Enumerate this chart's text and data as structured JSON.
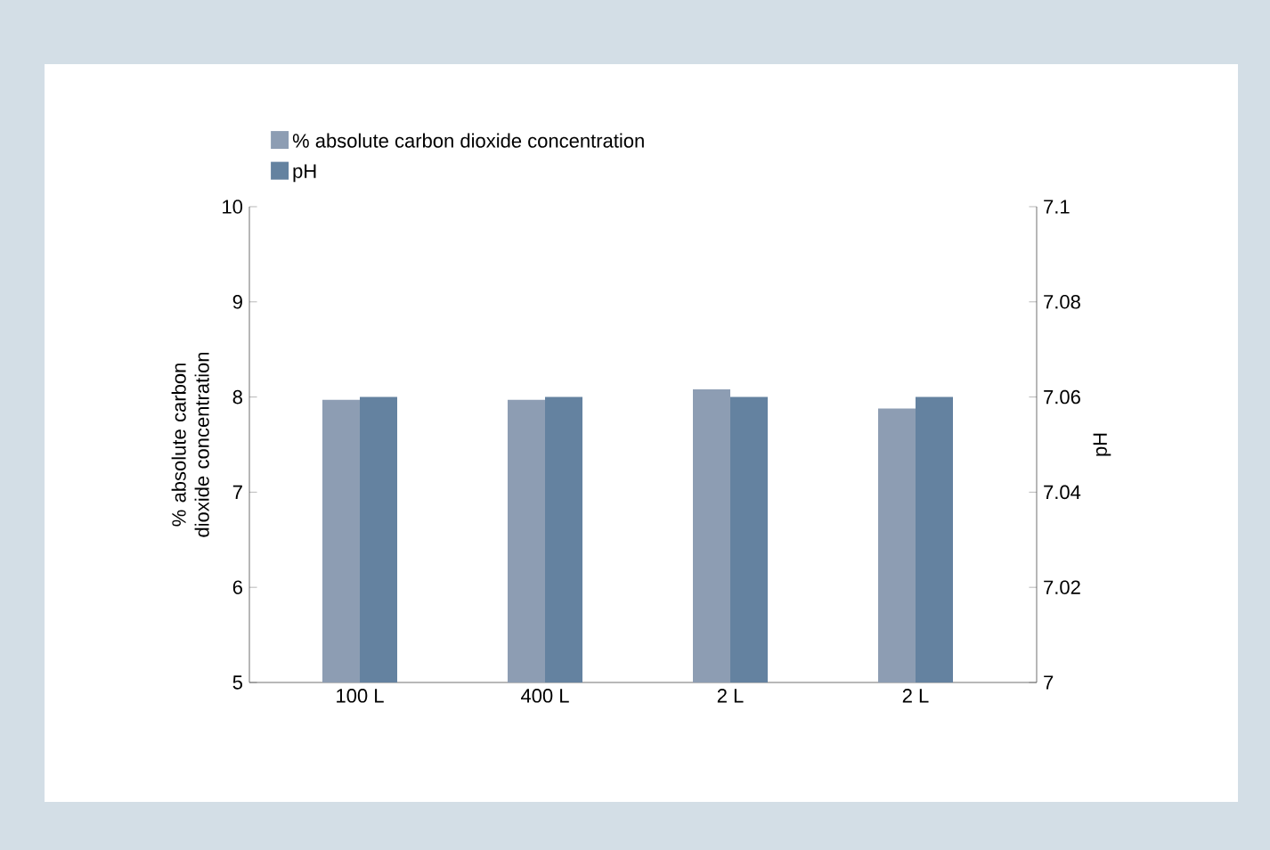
{
  "chart_data": {
    "type": "bar",
    "categories": [
      "100 L",
      "400 L",
      "2 L",
      "2 L"
    ],
    "series": [
      {
        "name": "% absolute carbon dioxide concentration",
        "color": "#8d9db3",
        "values": [
          7.97,
          7.97,
          8.08,
          7.88
        ]
      },
      {
        "name": "pH",
        "color": "#6482a0",
        "values": [
          7.06,
          7.06,
          7.06,
          7.06
        ],
        "axis": "y2"
      }
    ],
    "ylabel": "% absolute carbon dioxide concentration",
    "y2label": "pH",
    "ylim": [
      5,
      10
    ],
    "yticks": [
      5,
      6,
      7,
      8,
      9,
      10
    ],
    "y2lim": [
      7,
      7.1
    ],
    "y2ticks": [
      7,
      7.02,
      7.04,
      7.06,
      7.08,
      7.1
    ],
    "legend": "top left"
  }
}
